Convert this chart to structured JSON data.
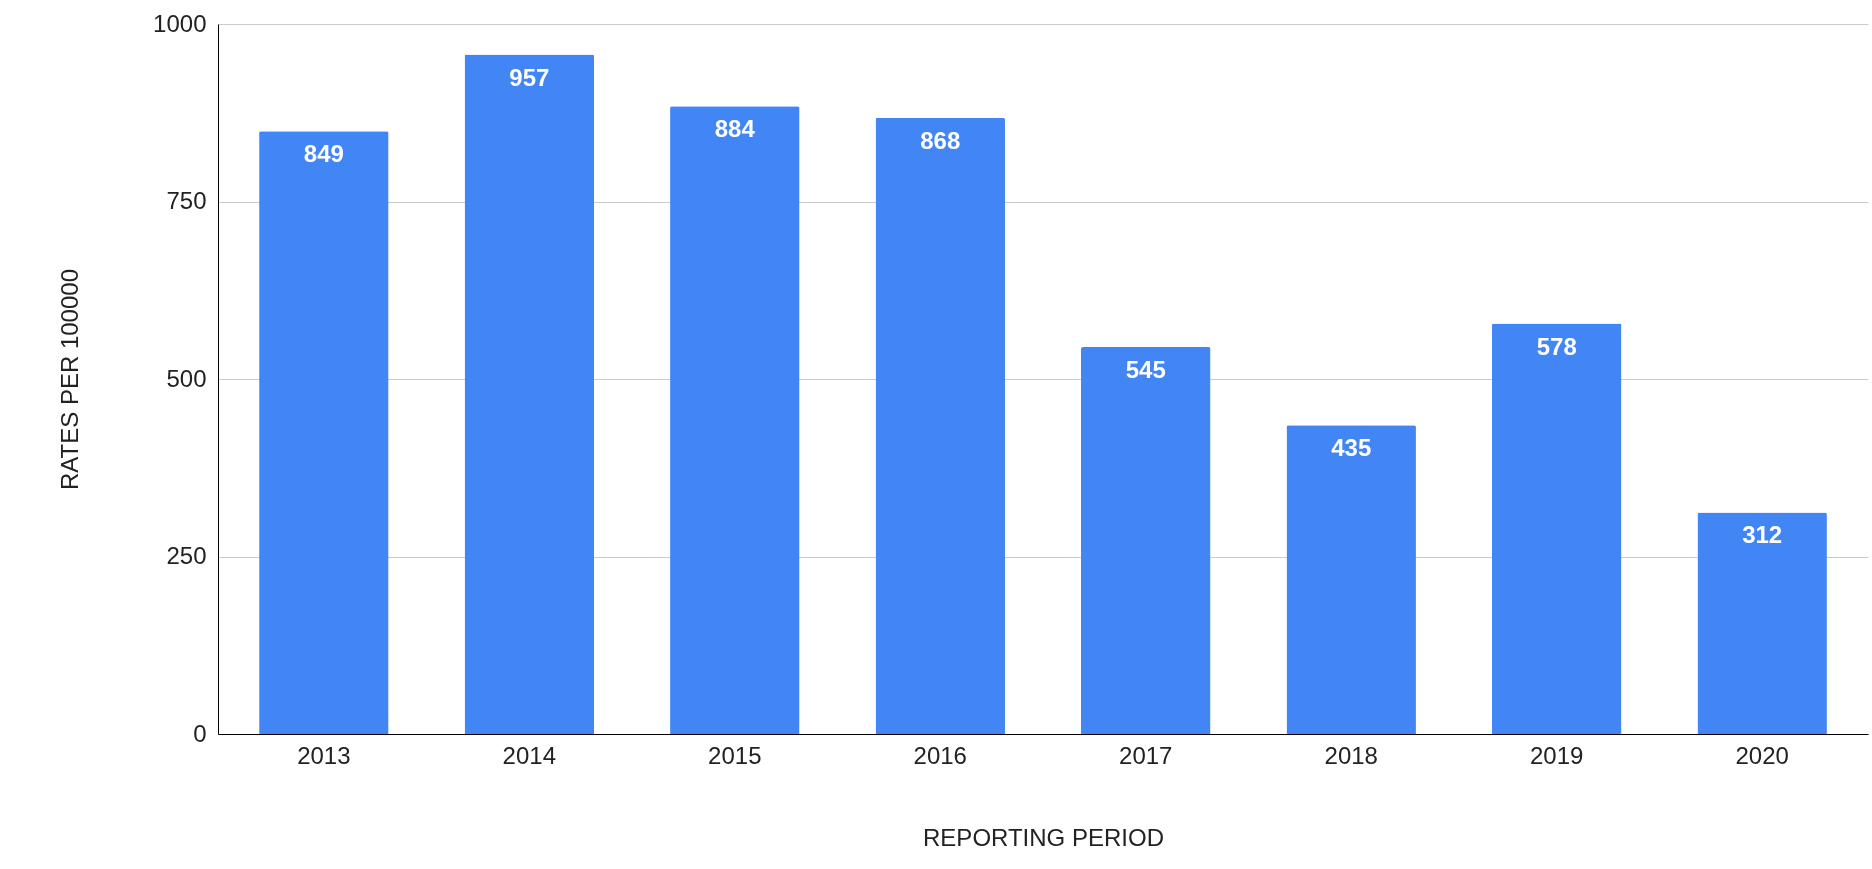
{
  "chart_data": {
    "type": "bar",
    "xlabel": "REPORTING PERIOD",
    "ylabel": "RATES PER 100000",
    "categories": [
      "2013",
      "2014",
      "2015",
      "2016",
      "2017",
      "2018",
      "2019",
      "2020"
    ],
    "values": [
      849,
      957,
      884,
      868,
      545,
      435,
      578,
      312
    ],
    "color": "#4285f4",
    "ylim": [
      0,
      1000
    ],
    "yticks": [
      0,
      250,
      500,
      750,
      1000
    ],
    "grid": "y",
    "data_labels": true
  }
}
